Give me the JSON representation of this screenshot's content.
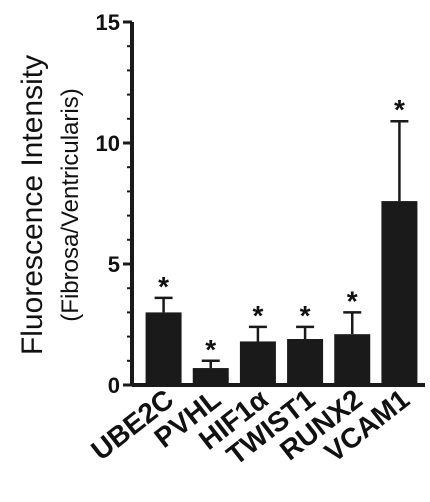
{
  "chart_data": {
    "type": "bar",
    "ylabel": "Fluorescence Intensity",
    "ylabel_sub": "(Fibrosa/Ventricularis)",
    "ylim": [
      0,
      15
    ],
    "yticks": [
      "0",
      "5",
      "10",
      "15"
    ],
    "categories": [
      "UBE2C",
      "PVHL",
      "HIF1α",
      "TWIST1",
      "RUNX2",
      "VCAM1"
    ],
    "values": [
      3.0,
      0.7,
      1.8,
      1.9,
      2.1,
      7.6
    ],
    "errors": [
      0.6,
      0.3,
      0.6,
      0.5,
      0.9,
      3.3
    ],
    "significance": [
      "*",
      "*",
      "*",
      "*",
      "*",
      "*"
    ],
    "bar_color": "#1a1a1a",
    "grid": false
  }
}
